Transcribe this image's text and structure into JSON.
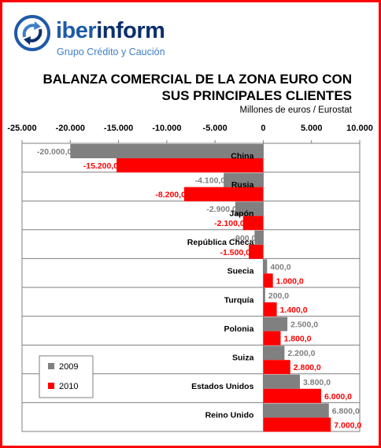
{
  "header": {
    "logo_name_a": "iber",
    "logo_name_b": "inform",
    "logo_tagline": "Grupo Crédito y Caución",
    "logo_icon": "circular-arrows-icon",
    "title_line1": "BALANZA COMERCIAL DE LA ZONA EURO CON",
    "title_line2": "SUS PRINCIPALES CLIENTES",
    "subtitle": "Millones de euros / Eurostat"
  },
  "colors": {
    "frame": "#ff0000",
    "series_2009": "#808080",
    "series_2010": "#ff0000",
    "logo_dark": "#0b2f6b",
    "logo_light": "#3f7fc4"
  },
  "chart_data": {
    "type": "bar",
    "orientation": "horizontal",
    "categories": [
      "China",
      "Rusia",
      "Japón",
      "República Checa",
      "Suecia",
      "Turquía",
      "Polonia",
      "Suiza",
      "Estados Unidos",
      "Reino Unido"
    ],
    "series": [
      {
        "name": "2009",
        "color": "#808080",
        "values": [
          -20000,
          -4100,
          -2900,
          -900,
          400,
          200,
          2500,
          2200,
          3800,
          6800
        ],
        "labels": [
          "-20.000,0",
          "-4.100,0",
          "-2.900,0",
          "-900,0",
          "400,0",
          "200,0",
          "2.500,0",
          "2.200,0",
          "3.800,0",
          "6.800,0"
        ]
      },
      {
        "name": "2010",
        "color": "#ff0000",
        "values": [
          -15200,
          -8200,
          -2100,
          -1500,
          1000,
          1400,
          1800,
          2800,
          6000,
          7000
        ],
        "labels": [
          "-15.200,0",
          "-8.200,0",
          "-2.100,0",
          "-1.500,0",
          "1.000,0",
          "1.400,0",
          "1.800,0",
          "2.800,0",
          "6.000,0",
          "7.000,0"
        ]
      }
    ],
    "xlim": [
      -25000,
      10000
    ],
    "ticks": [
      -25000,
      -20000,
      -15000,
      -10000,
      -5000,
      0,
      5000,
      10000
    ],
    "tick_labels": [
      "-25.000",
      "-20.000",
      "-15.000",
      "-10.000",
      "-5.000",
      "0",
      "5.000",
      "10.000"
    ],
    "axis_position": "top",
    "grid": true,
    "legend": {
      "position": "bottom-left",
      "entries": [
        "2009",
        "2010"
      ]
    }
  }
}
